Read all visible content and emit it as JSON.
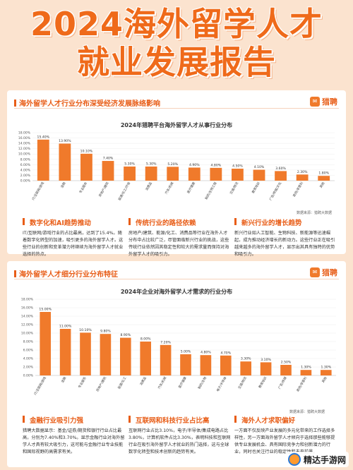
{
  "hero": {
    "line1": "2024海外留学人才",
    "line2": "就业发展报告"
  },
  "brand_name": "猎聘",
  "accent_color": "#e85d17",
  "bar_color": "#f07a2b",
  "watermark": {
    "text": "精达手游网",
    "icon": "gamepad-logo-icon"
  },
  "section1": {
    "title": "海外留学人才行业分布深受经济发展脉络影响",
    "source": "数据来源：猎聘大数据",
    "columns": [
      {
        "heading": "数字化和AI趋势推动",
        "text": "IT/互联网/游戏行业的占比最高，达到了15.4%。随着数字化转型的加速，吸引更多的海外留学人才。这些行业的创新和变革潜力将继续为海外留学人才就业选择的热点。"
      },
      {
        "heading": "传统行业的路径依赖",
        "text": "房地产/建筑、能源/化工、消费品等行业在海外人才分布中占比较广泛，尽管面临新兴行业的挑战，这些传统行业依然因其稳定性和较大的需求量而保持对海外留学人才的吸引力。"
      },
      {
        "heading": "新兴行业的增长趋势",
        "text": "新兴行业如人工智能、生物科技、新能源等迅速崛起，成为推动经济增长的新动力。这些行业正在吸引越来越多的海外留学人才，显示出其具有独特的优势和吸引力。"
      }
    ]
  },
  "section2": {
    "title": "海外留学人才细分行业分布特征",
    "source": "数据来源：猎聘大数据",
    "columns": [
      {
        "heading": "金融行业吸引力强",
        "text": "猎聘大数据显示：基金/证券/期货和银行行业占比最高，分别为7.40%和3.70%。显示金融行业对海外留学人才具有较大吸引力，这可能与金融行业专业技能和国际视野的高需求有关。"
      },
      {
        "heading": "互联网和科技行业占比高",
        "text": "互联网行业占比3.10%，电子/半导体/集成电路占比3.80%，计算机软件占比3.30%，表明科技和互联网行业在吸引海外留学人才就业的热门选择，这与全球数字化转型和技术创新的趋势有关。"
      },
      {
        "heading": "海外人才求职偏好",
        "text": "一方面不仅反映产业发展的多元化带来的工作选择多样性，另一方面海外留学人才倾向于选择那些能够提供专业发展机会、具有国际竞争力和创新潜力的行业，同时也关注行业的稳定性和未来前景。"
      }
    ]
  },
  "chart_data": [
    {
      "type": "bar",
      "title": "2024年猎聘平台海外留学人才从事行业分布",
      "categories": [
        "IT/互联网/游戏",
        "金融",
        "专业服务",
        "房地产/建筑",
        "能源/化工/环保",
        "消费品",
        "汽车/机械",
        "医疗健康",
        "制药/生物工程",
        "交通/物流",
        "教育培训",
        "广告/传媒/文化",
        "政府/非营利",
        "其他"
      ],
      "values": [
        15.4,
        13.9,
        10.1,
        7.4,
        5.3,
        5.3,
        5.2,
        4.9,
        4.8,
        4.5,
        4.1,
        3.6,
        2.3,
        1.8
      ],
      "value_labels": [
        "15.40%",
        "13.90%",
        "10.10%",
        "7.40%",
        "5.30%",
        "5.30%",
        "5.20%",
        "4.90%",
        "4.80%",
        "4.50%",
        "4.10%",
        "3.60%",
        "2.30%",
        "1.80%"
      ],
      "yticks": [
        "0.00%",
        "2.00%",
        "4.00%",
        "6.00%",
        "8.00%",
        "10.00%",
        "12.00%",
        "14.00%",
        "16.00%",
        "18.00%"
      ],
      "ylim": [
        0,
        18
      ]
    },
    {
      "type": "bar",
      "title": "2024年企业对海外留学人才需求的行业分布",
      "categories": [
        "IT/互联网/游戏",
        "金融",
        "专业服务",
        "房地产/建筑",
        "能源/化工",
        "消费品",
        "汽车/机械",
        "医疗健康",
        "制药/生物",
        "电子/半导体",
        "交通/物流",
        "教育培训",
        "广告/传媒",
        "政府/非营利",
        "其他"
      ],
      "values": [
        15.0,
        11.0,
        10.1,
        9.8,
        8.9,
        8.0,
        7.2,
        5.0,
        4.8,
        4.7,
        3.3,
        3.1,
        2.5,
        1.3,
        1.3
      ],
      "value_labels": [
        "15.00%",
        "11.00%",
        "10.10%",
        "9.80%",
        "8.90%",
        "8.00%",
        "7.20%",
        "5.00%",
        "4.80%",
        "4.70%",
        "3.30%",
        "3.10%",
        "2.50%",
        "1.30%",
        "1.30%"
      ],
      "yticks": [
        "0.00%",
        "2.00%",
        "4.00%",
        "6.00%",
        "8.00%",
        "10.00%",
        "12.00%",
        "14.00%",
        "16.00%",
        "18.00%"
      ],
      "ylim": [
        0,
        18
      ]
    }
  ]
}
